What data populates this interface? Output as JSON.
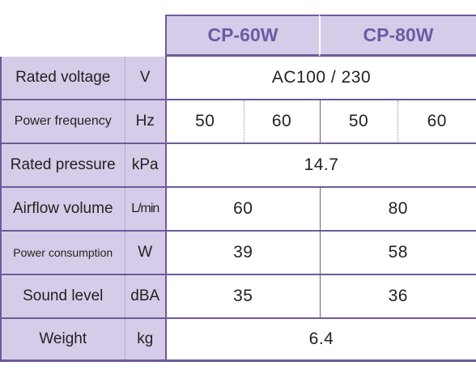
{
  "models": [
    "CP-60W",
    "CP-80W"
  ],
  "rows": {
    "rated_voltage": {
      "label": "Rated voltage",
      "unit": "V",
      "value": "AC100 / 230"
    },
    "power_frequency": {
      "label": "Power frequency",
      "unit": "Hz",
      "values": [
        "50",
        "60",
        "50",
        "60"
      ]
    },
    "rated_pressure": {
      "label": "Rated pressure",
      "unit": "kPa",
      "value": "14.7"
    },
    "airflow_volume": {
      "label": "Airflow volume",
      "unit": "L/min",
      "values": [
        "60",
        "80"
      ]
    },
    "power_consumption": {
      "label": "Power consumption",
      "unit": "W",
      "values": [
        "39",
        "58"
      ]
    },
    "sound_level": {
      "label": "Sound level",
      "unit": "dBA",
      "values": [
        "35",
        "36"
      ]
    },
    "weight": {
      "label": "Weight",
      "unit": "kg",
      "value": "6.4"
    }
  },
  "colors": {
    "header_bg": "#d6cce9",
    "border": "#6e5a99",
    "header_text": "#6e5aa3"
  }
}
